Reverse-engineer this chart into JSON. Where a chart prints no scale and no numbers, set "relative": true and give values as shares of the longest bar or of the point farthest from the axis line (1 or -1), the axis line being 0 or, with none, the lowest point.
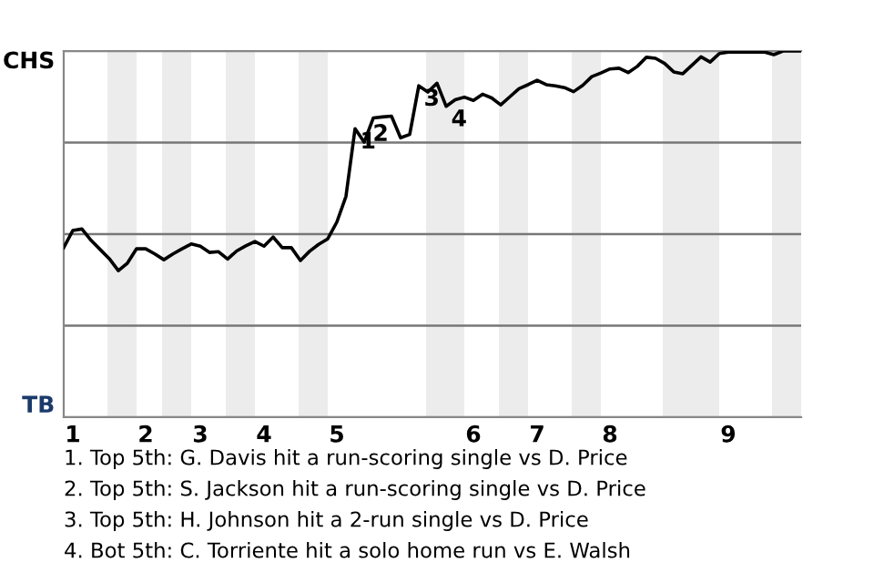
{
  "chart_data": {
    "type": "line",
    "relative": true,
    "categories": [
      null,
      "1",
      null,
      null,
      null,
      null,
      null,
      null,
      null,
      "2",
      null,
      null,
      null,
      null,
      null,
      "3",
      null,
      null,
      null,
      null,
      null,
      null,
      "4",
      null,
      null,
      null,
      null,
      null,
      null,
      null,
      "5",
      null,
      null,
      null,
      null,
      null,
      null,
      null,
      null,
      null,
      null,
      null,
      null,
      null,
      null,
      "6",
      null,
      null,
      null,
      null,
      null,
      null,
      "7",
      null,
      null,
      null,
      null,
      null,
      null,
      null,
      "8",
      null,
      null,
      null,
      null,
      null,
      null,
      null,
      null,
      null,
      null,
      null,
      null,
      "9",
      null,
      null,
      null,
      null,
      null,
      null,
      null,
      null
    ],
    "series": [
      {
        "color": "#000000",
        "values": [
          0.463,
          0.51,
          0.514,
          0.483,
          0.458,
          0.433,
          0.4,
          0.421,
          0.46,
          0.46,
          0.446,
          0.43,
          0.446,
          0.46,
          0.473,
          0.467,
          0.45,
          0.452,
          0.432,
          0.454,
          0.468,
          0.48,
          0.467,
          0.492,
          0.463,
          0.463,
          0.428,
          0.453,
          0.472,
          0.487,
          0.533,
          0.603,
          0.788,
          0.751,
          0.817,
          0.82,
          0.822,
          0.763,
          0.772,
          0.905,
          0.888,
          0.912,
          0.849,
          0.867,
          0.874,
          0.865,
          0.882,
          0.872,
          0.853,
          0.875,
          0.897,
          0.908,
          0.92,
          0.908,
          0.905,
          0.9,
          0.889,
          0.906,
          0.93,
          0.94,
          0.951,
          0.953,
          0.941,
          0.958,
          0.983,
          0.98,
          0.966,
          0.943,
          0.938,
          0.961,
          0.984,
          0.97,
          0.993,
          0.997,
          0.997,
          0.997,
          0.997,
          0.997,
          0.99,
          1,
          1,
          1
        ]
      }
    ],
    "grid": "y",
    "annotations": [
      {
        "text": "1",
        "y": 0.788
      },
      {
        "text": "3",
        "y": 0.905
      },
      {
        "text": "4",
        "y": 0.849
      },
      "2",
      "CHS",
      "TB",
      "1. Top 5th: G. Davis hit a run-scoring single vs D. Price",
      "2. Top 5th: S. Jackson hit a run-scoring single vs D. Price",
      "3. Top 5th: H. Johnson hit a 2-run single vs D. Price",
      "4. Bot 5th: C. Torriente hit a solo home run vs E. Walsh"
    ]
  }
}
